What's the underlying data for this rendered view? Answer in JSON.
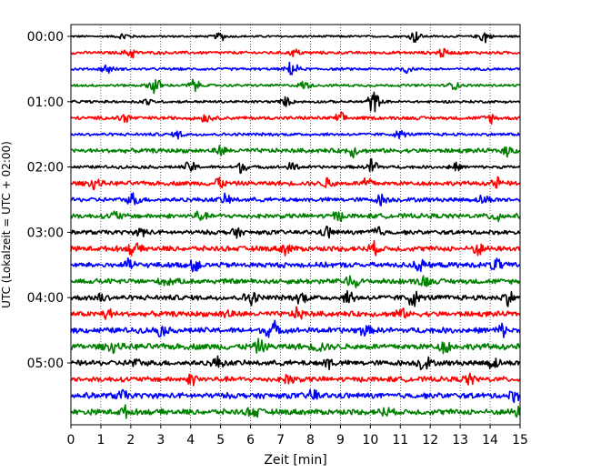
{
  "chart_data": {
    "type": "line",
    "title": "",
    "xlabel": "Zeit  [min]",
    "ylabel": "UTC (Lokalzeit = UTC + 02:00)",
    "xlim": [
      0,
      15
    ],
    "x_ticks": [
      0,
      1,
      2,
      3,
      4,
      5,
      6,
      7,
      8,
      9,
      10,
      11,
      12,
      13,
      14,
      15
    ],
    "x_tick_labels": [
      "0",
      "1",
      "2",
      "3",
      "4",
      "5",
      "6",
      "7",
      "8",
      "9",
      "10",
      "11",
      "12",
      "13",
      "14",
      "15"
    ],
    "vertical_grid": "dotted, every 1 min",
    "trace_interval_min": 15,
    "y_tick_labels": [
      "00:00",
      "01:00",
      "02:00",
      "03:00",
      "04:00",
      "05:00"
    ],
    "y_tick_trace_index": [
      0,
      4,
      8,
      12,
      16,
      20
    ],
    "color_cycle": [
      "#000000",
      "#ff0000",
      "#0000ff",
      "#008000"
    ],
    "traces": [
      {
        "start_utc": "00:00",
        "color": "#000000",
        "noise": 0.25,
        "bursts": [
          [
            1.8,
            0.9
          ],
          [
            5.0,
            0.9
          ],
          [
            11.5,
            1.4
          ],
          [
            13.8,
            1.6
          ]
        ]
      },
      {
        "start_utc": "00:15",
        "color": "#ff0000",
        "noise": 0.35,
        "bursts": [
          [
            2.0,
            1.2
          ],
          [
            7.5,
            0.8
          ],
          [
            12.4,
            1.0
          ]
        ]
      },
      {
        "start_utc": "00:30",
        "color": "#0000ff",
        "noise": 0.3,
        "bursts": [
          [
            1.2,
            1.0
          ],
          [
            7.4,
            1.8
          ],
          [
            11.2,
            0.8
          ]
        ]
      },
      {
        "start_utc": "00:45",
        "color": "#008000",
        "noise": 0.3,
        "bursts": [
          [
            2.8,
            2.2
          ],
          [
            4.1,
            1.4
          ],
          [
            7.8,
            0.9
          ],
          [
            12.8,
            0.8
          ]
        ]
      },
      {
        "start_utc": "01:00",
        "color": "#000000",
        "noise": 0.3,
        "bursts": [
          [
            2.5,
            0.8
          ],
          [
            7.2,
            0.9
          ],
          [
            10.1,
            2.6
          ]
        ]
      },
      {
        "start_utc": "01:15",
        "color": "#ff0000",
        "noise": 0.4,
        "bursts": [
          [
            1.8,
            1.2
          ],
          [
            4.5,
            0.9
          ],
          [
            9.0,
            1.0
          ],
          [
            14.0,
            1.0
          ]
        ]
      },
      {
        "start_utc": "01:30",
        "color": "#0000ff",
        "noise": 0.35,
        "bursts": [
          [
            3.6,
            0.8
          ],
          [
            11.0,
            0.8
          ]
        ]
      },
      {
        "start_utc": "01:45",
        "color": "#008000",
        "noise": 0.5,
        "bursts": [
          [
            5.0,
            0.9
          ],
          [
            9.4,
            1.2
          ],
          [
            14.6,
            1.0
          ]
        ]
      },
      {
        "start_utc": "02:00",
        "color": "#000000",
        "noise": 0.35,
        "bursts": [
          [
            4.0,
            1.4
          ],
          [
            5.7,
            1.2
          ],
          [
            7.4,
            1.0
          ],
          [
            10.1,
            2.2
          ],
          [
            12.8,
            1.0
          ]
        ]
      },
      {
        "start_utc": "02:15",
        "color": "#ff0000",
        "noise": 0.5,
        "bursts": [
          [
            0.8,
            1.2
          ],
          [
            4.9,
            1.6
          ],
          [
            8.6,
            1.2
          ],
          [
            9.9,
            1.4
          ],
          [
            14.2,
            1.2
          ]
        ]
      },
      {
        "start_utc": "02:30",
        "color": "#0000ff",
        "noise": 0.5,
        "bursts": [
          [
            2.1,
            1.4
          ],
          [
            5.2,
            1.0
          ],
          [
            10.4,
            1.2
          ],
          [
            13.8,
            1.0
          ]
        ]
      },
      {
        "start_utc": "02:45",
        "color": "#008000",
        "noise": 0.55,
        "bursts": [
          [
            1.5,
            1.0
          ],
          [
            4.3,
            1.0
          ],
          [
            8.9,
            1.0
          ],
          [
            14.2,
            1.4
          ]
        ]
      },
      {
        "start_utc": "03:00",
        "color": "#000000",
        "noise": 0.5,
        "bursts": [
          [
            2.4,
            1.0
          ],
          [
            5.5,
            1.0
          ],
          [
            8.6,
            1.2
          ],
          [
            10.2,
            1.4
          ]
        ]
      },
      {
        "start_utc": "03:15",
        "color": "#ff0000",
        "noise": 0.6,
        "bursts": [
          [
            2.1,
            1.4
          ],
          [
            7.2,
            1.2
          ],
          [
            10.1,
            1.2
          ],
          [
            13.6,
            1.2
          ]
        ]
      },
      {
        "start_utc": "03:30",
        "color": "#0000ff",
        "noise": 0.6,
        "bursts": [
          [
            2.0,
            1.2
          ],
          [
            4.1,
            1.4
          ],
          [
            11.6,
            1.6
          ],
          [
            14.2,
            1.4
          ]
        ]
      },
      {
        "start_utc": "03:45",
        "color": "#008000",
        "noise": 0.6,
        "bursts": [
          [
            3.2,
            1.0
          ],
          [
            9.4,
            1.6
          ],
          [
            11.8,
            1.2
          ]
        ]
      },
      {
        "start_utc": "04:00",
        "color": "#000000",
        "noise": 0.6,
        "bursts": [
          [
            1.0,
            1.0
          ],
          [
            6.0,
            1.8
          ],
          [
            7.7,
            1.2
          ],
          [
            9.3,
            1.4
          ],
          [
            11.4,
            1.8
          ],
          [
            14.6,
            1.4
          ]
        ]
      },
      {
        "start_utc": "04:15",
        "color": "#ff0000",
        "noise": 0.6,
        "bursts": [
          [
            1.2,
            1.2
          ],
          [
            5.2,
            1.0
          ],
          [
            7.6,
            1.2
          ],
          [
            11.0,
            1.0
          ]
        ]
      },
      {
        "start_utc": "04:30",
        "color": "#0000ff",
        "noise": 0.65,
        "bursts": [
          [
            3.0,
            1.0
          ],
          [
            6.7,
            2.4
          ],
          [
            9.8,
            1.0
          ],
          [
            14.4,
            1.2
          ]
        ]
      },
      {
        "start_utc": "04:45",
        "color": "#008000",
        "noise": 0.7,
        "bursts": [
          [
            1.4,
            1.0
          ],
          [
            6.3,
            1.2
          ],
          [
            8.3,
            1.0
          ],
          [
            12.5,
            1.2
          ]
        ]
      },
      {
        "start_utc": "05:00",
        "color": "#000000",
        "noise": 0.6,
        "bursts": [
          [
            2.1,
            1.0
          ],
          [
            4.9,
            1.2
          ],
          [
            8.6,
            1.2
          ],
          [
            11.8,
            1.8
          ],
          [
            14.1,
            1.2
          ]
        ]
      },
      {
        "start_utc": "05:15",
        "color": "#ff0000",
        "noise": 0.6,
        "bursts": [
          [
            4.1,
            1.4
          ],
          [
            7.3,
            1.2
          ],
          [
            13.3,
            1.0
          ]
        ]
      },
      {
        "start_utc": "05:30",
        "color": "#0000ff",
        "noise": 0.65,
        "bursts": [
          [
            1.7,
            1.0
          ],
          [
            8.1,
            1.4
          ],
          [
            14.8,
            1.0
          ]
        ]
      },
      {
        "start_utc": "05:45",
        "color": "#008000",
        "noise": 0.65,
        "bursts": [
          [
            1.8,
            1.0
          ],
          [
            6.1,
            1.2
          ],
          [
            10.5,
            1.0
          ],
          [
            14.9,
            1.0
          ]
        ]
      }
    ]
  }
}
